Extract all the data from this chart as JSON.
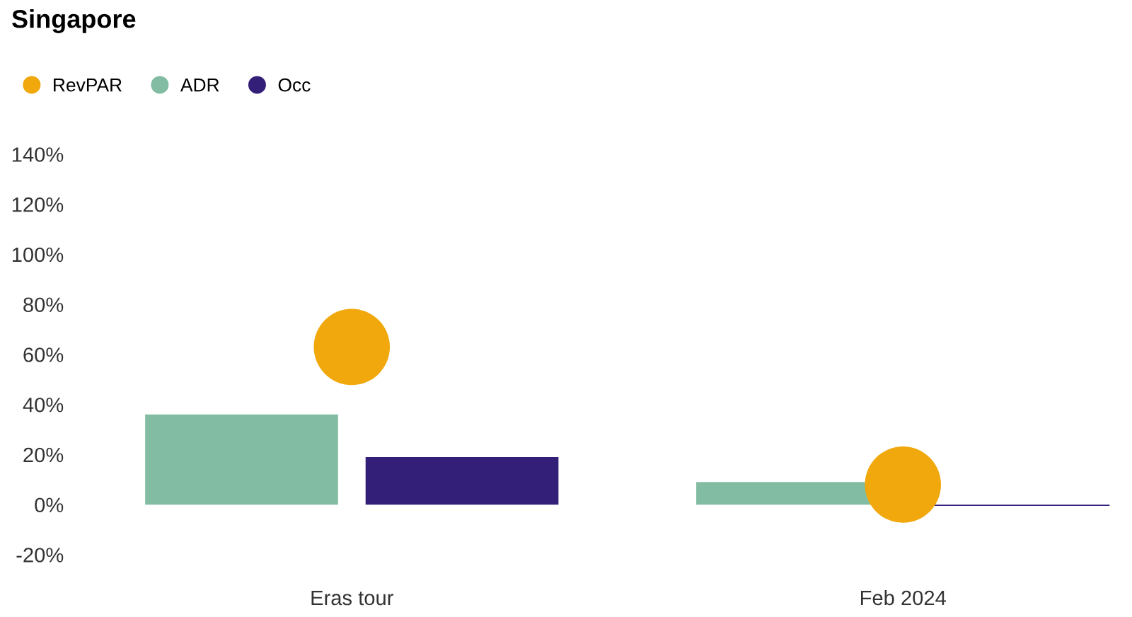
{
  "chart_data": {
    "type": "bar",
    "title": "Singapore",
    "categories": [
      "Eras tour",
      "Feb 2024"
    ],
    "series": [
      {
        "name": "RevPAR",
        "type": "scatter",
        "color": "#f0a80c",
        "x": [
          "Eras tour",
          "Feb 2024"
        ],
        "values": [
          63,
          8
        ]
      },
      {
        "name": "ADR",
        "color": "#82bca2",
        "values": [
          36,
          9
        ]
      },
      {
        "name": "Occ",
        "color": "#341f78",
        "values": [
          19,
          -0.5
        ]
      }
    ],
    "ylim": [
      -20,
      140
    ],
    "yticks": [
      {
        "value": -20,
        "label": "-20%"
      },
      {
        "value": 0,
        "label": "0%"
      },
      {
        "value": 20,
        "label": "20%"
      },
      {
        "value": 40,
        "label": "40%"
      },
      {
        "value": 60,
        "label": "60%"
      },
      {
        "value": 80,
        "label": "80%"
      },
      {
        "value": 100,
        "label": "100%"
      },
      {
        "value": 120,
        "label": "120%"
      },
      {
        "value": 140,
        "label": "140%"
      }
    ],
    "legend": "top left",
    "grid": false,
    "marker": "circle"
  }
}
